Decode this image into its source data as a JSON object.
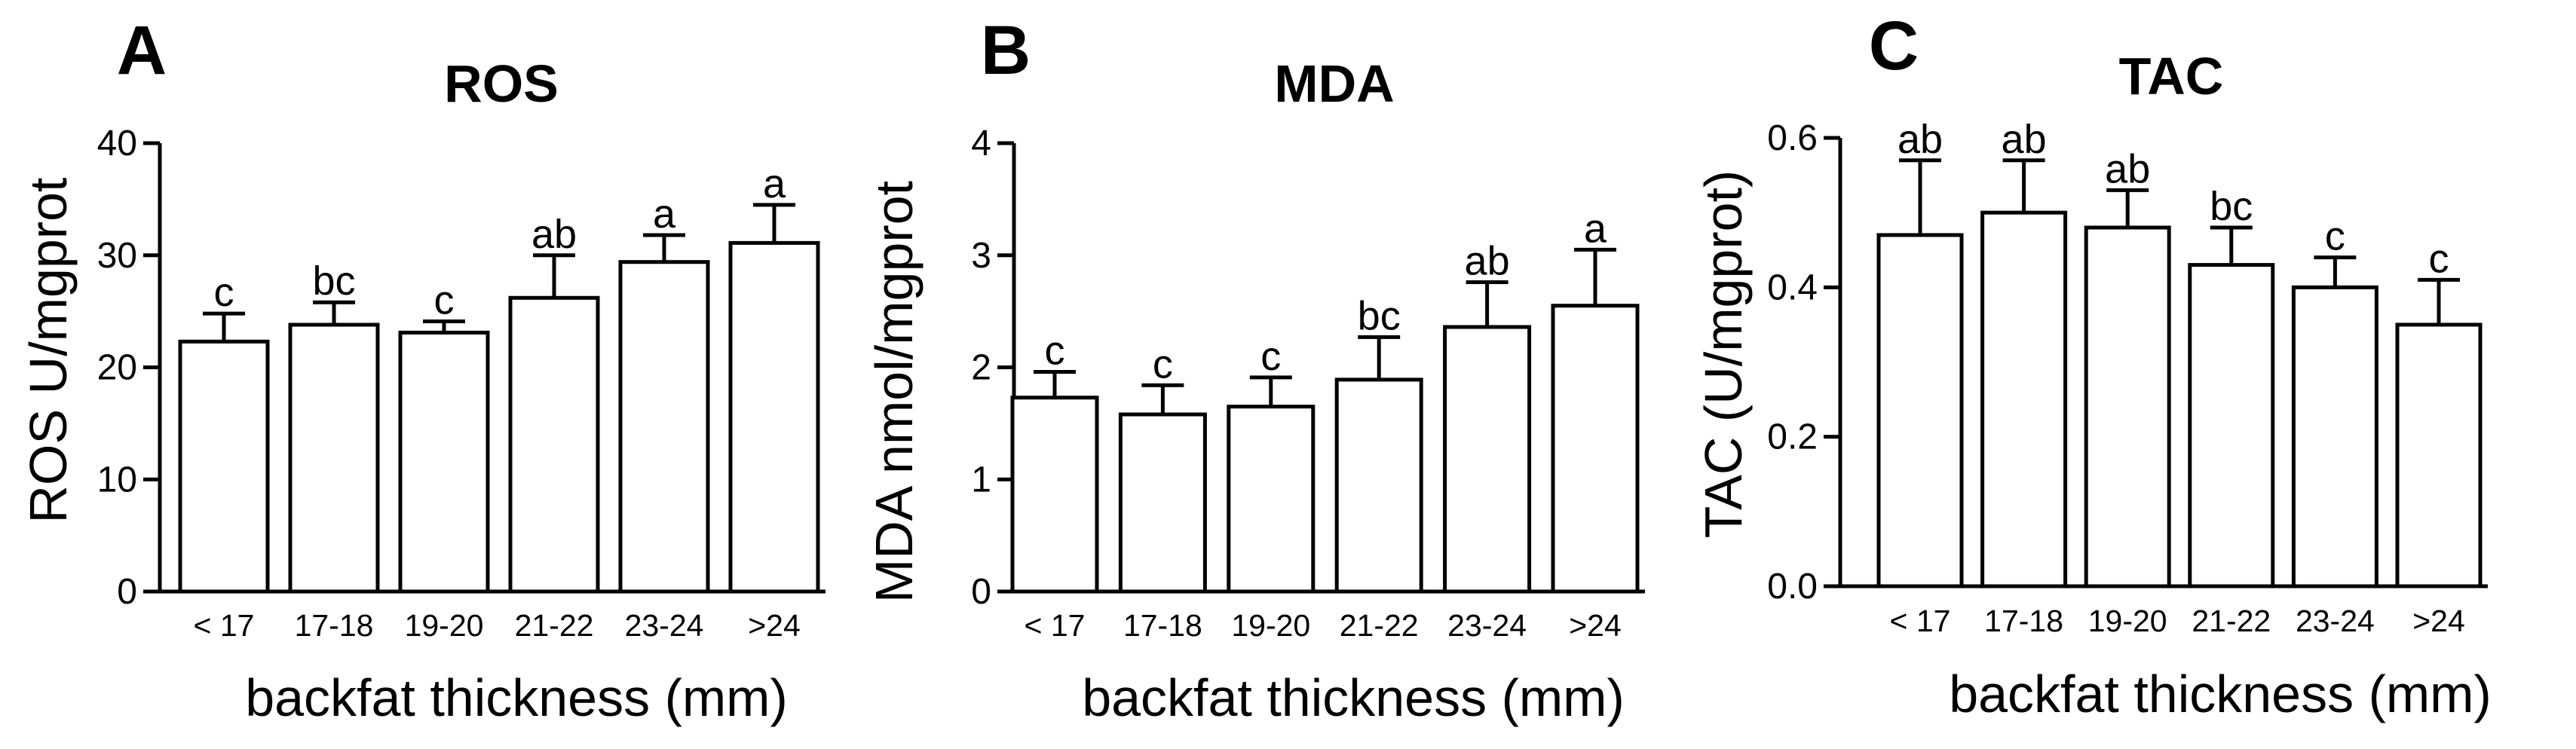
{
  "chart_data": [
    {
      "type": "bar",
      "panel": "A",
      "title": "ROS",
      "ylabel": "ROS U/mgprot",
      "xlabel": "backfat thickness (mm)",
      "categories": [
        "< 17",
        "17-18",
        "19-20",
        "21-22",
        "23-24",
        ">24"
      ],
      "values": [
        22.3,
        23.8,
        23.1,
        26.2,
        29.4,
        31.1
      ],
      "errors": [
        2.5,
        2.0,
        1.0,
        3.8,
        2.4,
        3.4
      ],
      "significance": [
        "c",
        "bc",
        "c",
        "ab",
        "a",
        "a"
      ],
      "ylim": [
        0,
        40
      ],
      "yticks": [
        "0",
        "10",
        "20",
        "30",
        "40"
      ],
      "grid": false,
      "legend": "none"
    },
    {
      "type": "bar",
      "panel": "B",
      "title": "MDA",
      "ylabel": "MDA nmol/mgprot",
      "xlabel": "backfat thickness (mm)",
      "categories": [
        "< 17",
        "17-18",
        "19-20",
        "21-22",
        "23-24",
        ">24"
      ],
      "values": [
        1.73,
        1.58,
        1.65,
        1.89,
        2.36,
        2.55
      ],
      "errors": [
        0.23,
        0.26,
        0.26,
        0.38,
        0.4,
        0.5
      ],
      "significance": [
        "c",
        "c",
        "c",
        "bc",
        "ab",
        "a"
      ],
      "ylim": [
        0,
        4
      ],
      "yticks": [
        "0",
        "1",
        "2",
        "3",
        "4"
      ],
      "grid": false,
      "legend": "none"
    },
    {
      "type": "bar",
      "panel": "C",
      "title": "TAC",
      "ylabel": "TAC (U/mgprot)",
      "xlabel": "backfat thickness (mm)",
      "categories": [
        "< 17",
        "17-18",
        "19-20",
        "21-22",
        "23-24",
        ">24"
      ],
      "values": [
        0.47,
        0.5,
        0.48,
        0.43,
        0.4,
        0.35
      ],
      "errors": [
        0.1,
        0.07,
        0.05,
        0.05,
        0.04,
        0.06
      ],
      "significance": [
        "ab",
        "ab",
        "ab",
        "bc",
        "c",
        "c"
      ],
      "ylim": [
        0,
        0.6
      ],
      "yticks": [
        "0.0",
        "0.2",
        "0.4",
        "0.6"
      ],
      "grid": false,
      "legend": "none"
    }
  ]
}
